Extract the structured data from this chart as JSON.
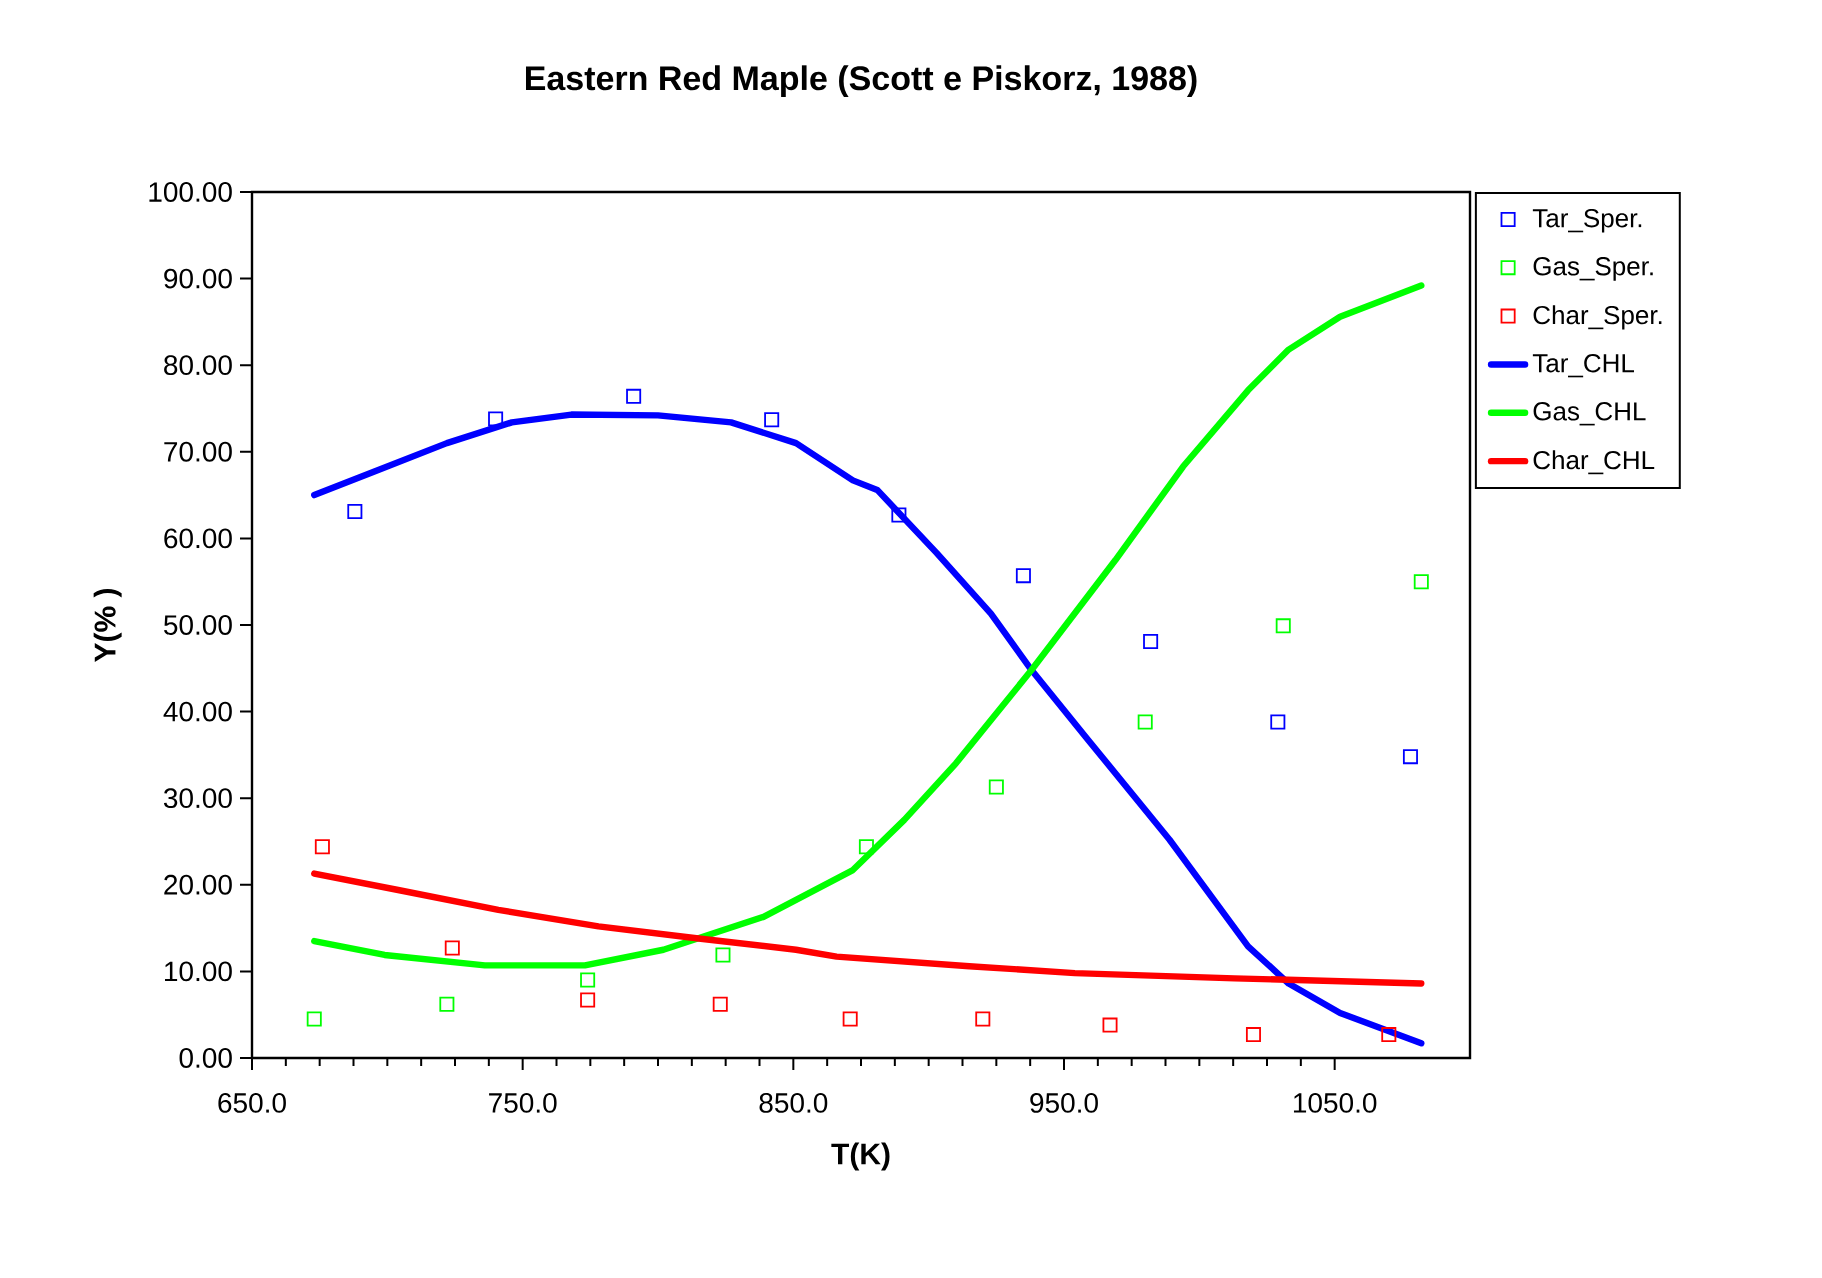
{
  "chart_data": {
    "type": "line",
    "title": "Eastern Red Maple (Scott e Piskorz, 1988)",
    "xlabel": "T(K)",
    "ylabel": "Y(% )",
    "xlim": [
      650,
      1100
    ],
    "ylim": [
      0,
      100
    ],
    "xticks": [
      {
        "value": 650,
        "label": "650.0"
      },
      {
        "value": 750,
        "label": "750.0"
      },
      {
        "value": 850,
        "label": "850.0"
      },
      {
        "value": 950,
        "label": "950.0"
      },
      {
        "value": 1050,
        "label": "1050.0"
      }
    ],
    "yticks": [
      {
        "value": 0,
        "label": "0.00"
      },
      {
        "value": 10,
        "label": "10.00"
      },
      {
        "value": 20,
        "label": "20.00"
      },
      {
        "value": 30,
        "label": "30.00"
      },
      {
        "value": 40,
        "label": "40.00"
      },
      {
        "value": 50,
        "label": "50.00"
      },
      {
        "value": 60,
        "label": "60.00"
      },
      {
        "value": 70,
        "label": "70.00"
      },
      {
        "value": 80,
        "label": "80.00"
      },
      {
        "value": 90,
        "label": "90.00"
      },
      {
        "value": 100,
        "label": "100.00"
      }
    ],
    "legend": "right",
    "grid": false,
    "series": [
      {
        "name": "Tar_Sper.",
        "type": "scatter",
        "marker": "square",
        "color": "#0000ff",
        "x": [
          688,
          740,
          791,
          842,
          889,
          935,
          982,
          1029,
          1078
        ],
        "values": [
          63.1,
          73.8,
          76.4,
          73.7,
          62.7,
          55.7,
          48.1,
          38.8,
          34.8
        ]
      },
      {
        "name": "Gas_Sper.",
        "type": "scatter",
        "marker": "square",
        "color": "#00ff00",
        "x": [
          673,
          722,
          774,
          824,
          877,
          925,
          980,
          1031,
          1082
        ],
        "values": [
          4.5,
          6.2,
          9.0,
          11.9,
          24.4,
          31.3,
          38.8,
          49.9,
          55.0
        ]
      },
      {
        "name": "Char_Sper.",
        "type": "scatter",
        "marker": "square",
        "color": "#ff0000",
        "x": [
          676,
          724,
          774,
          823,
          871,
          920,
          967,
          1020,
          1070
        ],
        "values": [
          24.4,
          12.7,
          6.7,
          6.2,
          4.5,
          4.5,
          3.8,
          2.7,
          2.7
        ]
      },
      {
        "name": "Tar_CHL",
        "marker": "none",
        "line_style": "solid",
        "color": "#0000ff",
        "x": [
          673,
          695,
          722,
          746,
          768,
          800,
          827,
          851,
          872,
          881,
          903,
          923,
          938,
          959,
          989,
          1018,
          1033,
          1052,
          1082
        ],
        "values": [
          65.0,
          67.7,
          71.0,
          73.4,
          74.3,
          74.2,
          73.4,
          71.0,
          66.7,
          65.6,
          58.3,
          51.3,
          44.8,
          36.7,
          25.2,
          12.9,
          8.6,
          5.2,
          1.7
        ]
      },
      {
        "name": "Gas_CHL",
        "marker": "none",
        "line_style": "solid",
        "color": "#00ff00",
        "x": [
          673,
          699,
          736,
          773,
          802,
          839,
          872,
          891,
          910,
          938,
          969,
          994,
          1018,
          1033,
          1052,
          1082
        ],
        "values": [
          13.5,
          11.9,
          10.7,
          10.7,
          12.5,
          16.3,
          21.7,
          27.5,
          34.0,
          44.8,
          57.5,
          68.3,
          77.1,
          81.8,
          85.6,
          89.2
        ]
      },
      {
        "name": "Char_CHL",
        "marker": "none",
        "line_style": "solid",
        "color": "#ff0000",
        "x": [
          673,
          704,
          741,
          778,
          815,
          851,
          866,
          915,
          954,
          1013,
          1082
        ],
        "values": [
          21.3,
          19.4,
          17.1,
          15.2,
          13.8,
          12.5,
          11.7,
          10.6,
          9.8,
          9.2,
          8.6
        ]
      }
    ]
  }
}
